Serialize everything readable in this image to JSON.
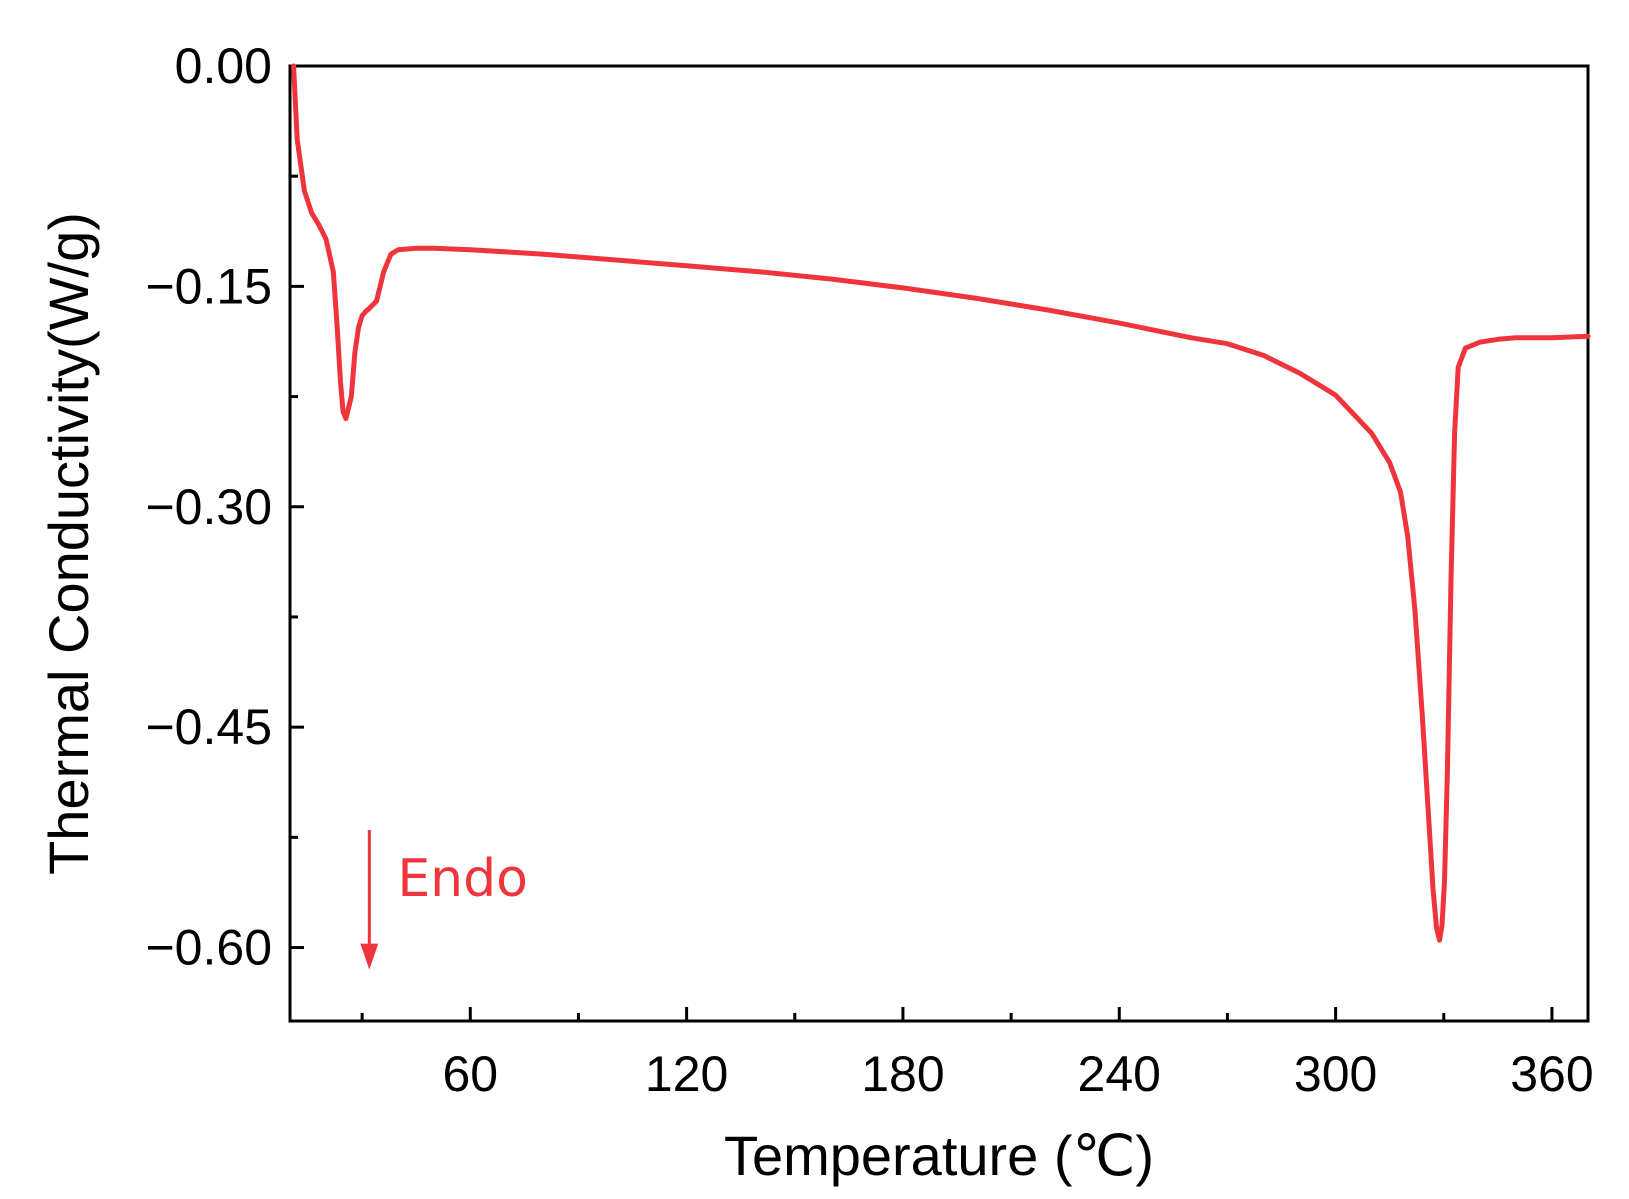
{
  "chart_data": {
    "type": "line",
    "title": "",
    "xlabel": "Temperature (℃)",
    "ylabel": "Thermal Conductivity(W/g)",
    "xlim": [
      10,
      370
    ],
    "ylim": [
      -0.65,
      0.0
    ],
    "x_ticks": [
      60,
      120,
      180,
      240,
      300,
      360
    ],
    "x_tick_labels": [
      "60",
      "120",
      "180",
      "240",
      "300",
      "360"
    ],
    "y_ticks": [
      0.0,
      -0.15,
      -0.3,
      -0.45,
      -0.6
    ],
    "y_tick_labels": [
      "0.00",
      "−0.15",
      "−0.30",
      "−0.45",
      "−0.60"
    ],
    "grid": false,
    "legend": "none",
    "series": [
      {
        "color": "#f0343c",
        "x": [
          11,
          12,
          14,
          16,
          18,
          20,
          22,
          23,
          24,
          24.7,
          25.5,
          27,
          28,
          29,
          30,
          31,
          32,
          34,
          36,
          38,
          40,
          45,
          50,
          60,
          80,
          100,
          120,
          140,
          160,
          180,
          200,
          220,
          240,
          260,
          270,
          280,
          290,
          300,
          310,
          315,
          318,
          320,
          322,
          324,
          326,
          327,
          328,
          328.8,
          329.5,
          330.2,
          331,
          332,
          333,
          334,
          336,
          338,
          340,
          345,
          350,
          360,
          370
        ],
        "y": [
          0.0,
          -0.05,
          -0.085,
          -0.1,
          -0.108,
          -0.118,
          -0.14,
          -0.175,
          -0.215,
          -0.235,
          -0.24,
          -0.225,
          -0.195,
          -0.178,
          -0.17,
          -0.167,
          -0.165,
          -0.16,
          -0.14,
          -0.128,
          -0.125,
          -0.124,
          -0.124,
          -0.125,
          -0.128,
          -0.132,
          -0.136,
          -0.14,
          -0.145,
          -0.151,
          -0.158,
          -0.166,
          -0.175,
          -0.185,
          -0.189,
          -0.197,
          -0.209,
          -0.224,
          -0.25,
          -0.27,
          -0.29,
          -0.32,
          -0.37,
          -0.44,
          -0.52,
          -0.56,
          -0.587,
          -0.595,
          -0.585,
          -0.555,
          -0.48,
          -0.35,
          -0.25,
          -0.205,
          -0.192,
          -0.19,
          -0.188,
          -0.186,
          -0.185,
          -0.185,
          -0.184
        ]
      }
    ],
    "annotation": {
      "text": "Endo",
      "color": "#f0343c",
      "arrow": "down",
      "arrow_y_from": -0.52,
      "arrow_y_to": -0.615,
      "arrow_x": 32
    }
  }
}
